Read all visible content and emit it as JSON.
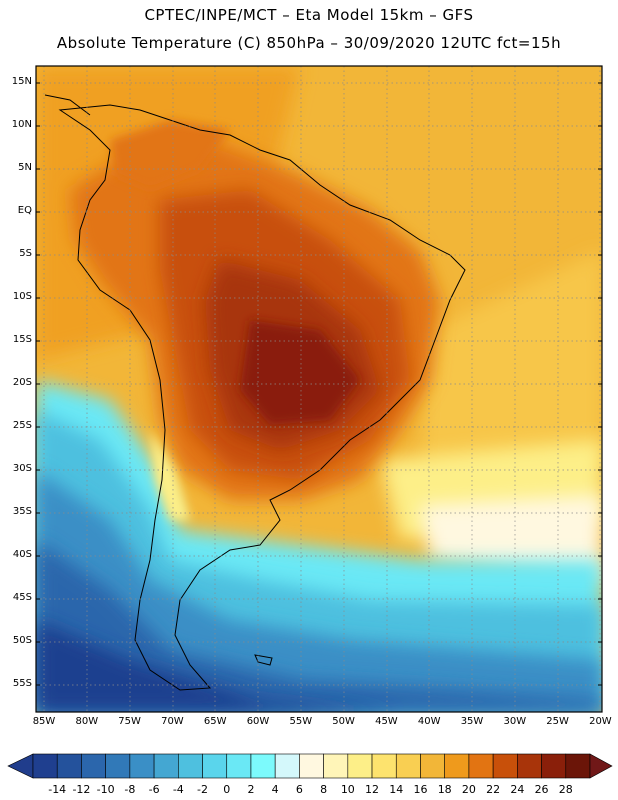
{
  "header": {
    "line1": "CPTEC/INPE/MCT –  Eta Model 15km – GFS",
    "line2": "Absolute Temperature (C) 850hPa – 30/09/2020 12UTC fct=15h"
  },
  "map": {
    "lat_labels": [
      "15N",
      "10N",
      "5N",
      "EQ",
      "5S",
      "10S",
      "15S",
      "20S",
      "25S",
      "30S",
      "35S",
      "40S",
      "45S",
      "50S",
      "55S"
    ],
    "lon_labels": [
      "85W",
      "80W",
      "75W",
      "70W",
      "65W",
      "60W",
      "55W",
      "50W",
      "45W",
      "40W",
      "35W",
      "30W",
      "25W",
      "20W"
    ],
    "region_labels": []
  },
  "colorbar": {
    "ticks": [
      "-14",
      "-12",
      "-10",
      "-8",
      "-6",
      "-4",
      "-2",
      "0",
      "2",
      "4",
      "6",
      "8",
      "10",
      "12",
      "14",
      "16",
      "18",
      "20",
      "22",
      "24",
      "26",
      "28"
    ],
    "colors": [
      "#1f3f8f",
      "#24529c",
      "#2b66ac",
      "#3179b8",
      "#3a8fc6",
      "#44a7d2",
      "#4ec0df",
      "#5ad5ec",
      "#6ae8f5",
      "#7cfafc",
      "#d4f8fb",
      "#fff8e0",
      "#fff5b8",
      "#fdef88",
      "#fde36e",
      "#f9cf52",
      "#f2b638",
      "#ef9a1c",
      "#e27412",
      "#c8500a",
      "#a8340a",
      "#8a1f0a",
      "#6b1508"
    ],
    "under_color": "#203d8c",
    "over_color": "#701818"
  }
}
